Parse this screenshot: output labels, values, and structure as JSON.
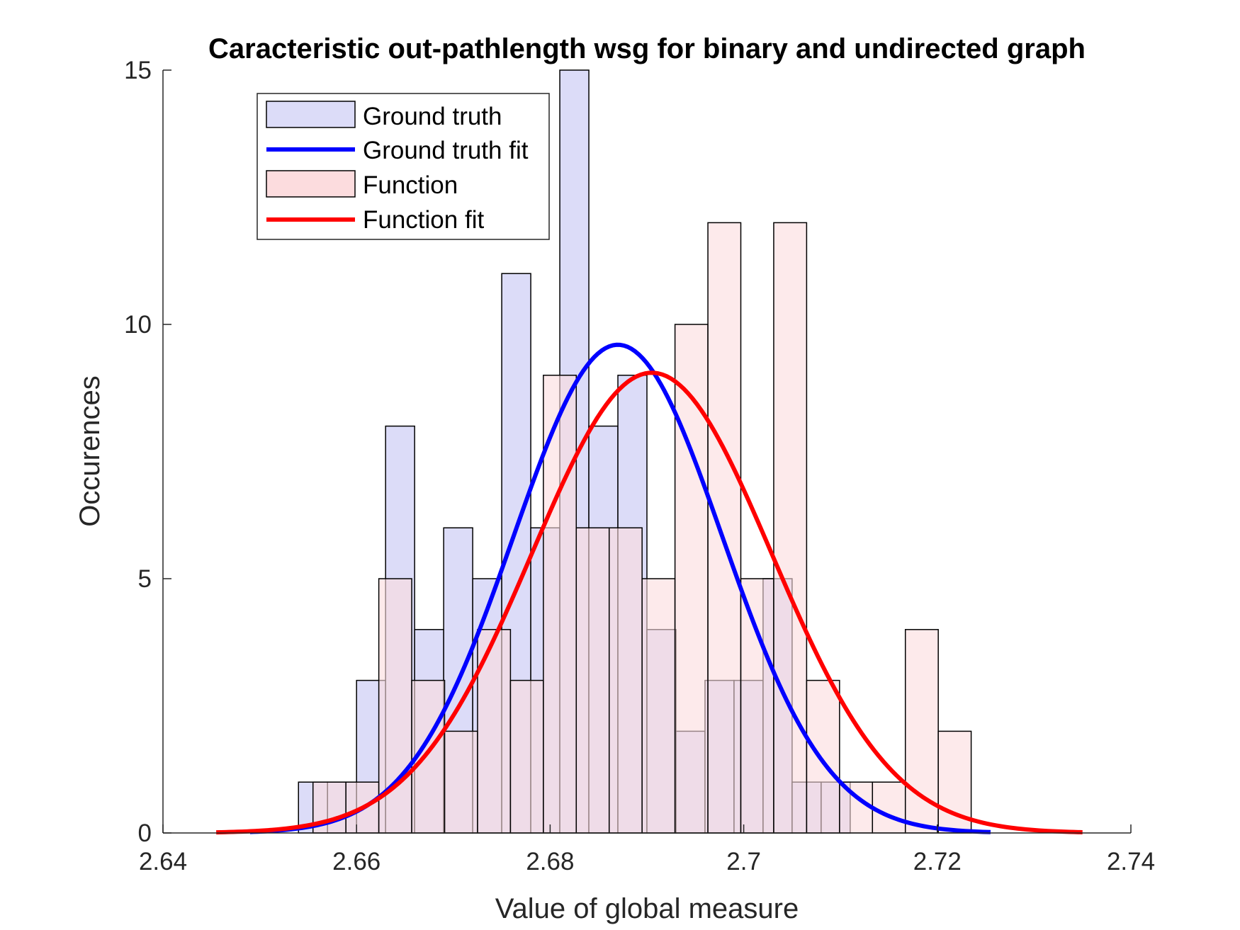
{
  "chart_data": {
    "type": "bar",
    "title": "Caracteristic out-pathlength wsg for binary and undirected graph",
    "xlabel": "Value of global measure",
    "ylabel": "Occurences",
    "xlim": [
      2.64,
      2.74
    ],
    "ylim": [
      0,
      15
    ],
    "xticks": [
      2.64,
      2.66,
      2.68,
      2.7,
      2.72,
      2.74
    ],
    "xtick_labels": [
      "2.64",
      "2.66",
      "2.68",
      "2.7",
      "2.72",
      "2.74"
    ],
    "yticks": [
      0,
      5,
      10,
      15
    ],
    "ytick_labels": [
      "0",
      "5",
      "10",
      "15"
    ],
    "grid": false,
    "legend_position": "top-left",
    "series": [
      {
        "name": "Ground truth",
        "kind": "histogram",
        "color": "#DCDCF8",
        "edge_color": "#000000",
        "bin_start": 2.654,
        "bin_width": 0.003,
        "counts": [
          1,
          1,
          3,
          8,
          4,
          6,
          5,
          11,
          6,
          15,
          8,
          9,
          4,
          2,
          3,
          3,
          5,
          1,
          1
        ]
      },
      {
        "name": "Ground truth fit",
        "kind": "normal_fit",
        "color": "#0000FF",
        "mean": 2.687,
        "peak": 9.6,
        "sigma": 0.0108,
        "x_range": [
          2.649,
          2.7255
        ]
      },
      {
        "name": "Function",
        "kind": "histogram",
        "color": "#FCDCDE",
        "edge_color": "#000000",
        "bin_start": 2.6555,
        "bin_width": 0.0034,
        "counts": [
          1,
          1,
          5,
          3,
          2,
          4,
          3,
          9,
          6,
          6,
          5,
          10,
          12,
          5,
          12,
          3,
          1,
          1,
          4,
          2
        ]
      },
      {
        "name": "Function fit",
        "kind": "normal_fit",
        "color": "#FF0000",
        "mean": 2.6905,
        "peak": 9.05,
        "sigma": 0.0124,
        "x_range": [
          2.6455,
          2.735
        ]
      }
    ]
  }
}
